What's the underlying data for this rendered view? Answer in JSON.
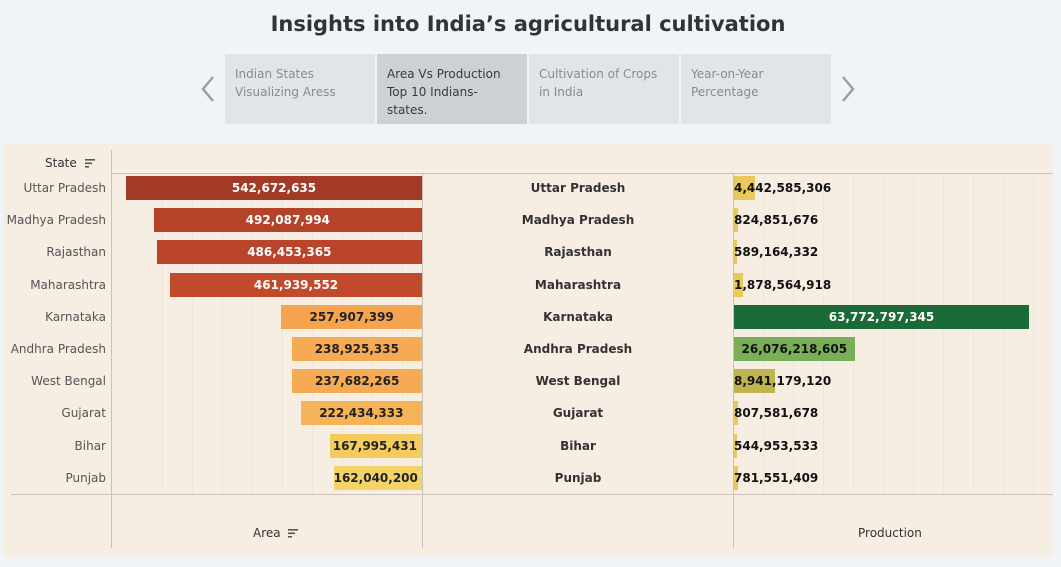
{
  "title": "Insights into India’s agricultural cultivation",
  "tabs": [
    {
      "label": "Indian States Visualizing Aress",
      "active": false
    },
    {
      "label": "Area Vs Production Top 10 Indians-states.",
      "active": true
    },
    {
      "label": "Cultivation of Crops in India",
      "active": false
    },
    {
      "label": "Year-on-Year Percentage",
      "active": false
    }
  ],
  "nav": {
    "prev_icon": "chevron-left-icon",
    "next_icon": "chevron-right-icon"
  },
  "headers": {
    "state": "State",
    "area": "Area",
    "production": "Production"
  },
  "chart_data": {
    "type": "bar",
    "categories": [
      "Uttar Pradesh",
      "Madhya Pradesh",
      "Rajasthan",
      "Maharashtra",
      "Karnataka",
      "Andhra Pradesh",
      "West Bengal",
      "Gujarat",
      "Bihar",
      "Punjab"
    ],
    "series": [
      {
        "name": "Area",
        "values": [
          542672635,
          492087994,
          486453365,
          461939552,
          257907399,
          238925335,
          237682265,
          222434333,
          167995431,
          162040200
        ]
      },
      {
        "name": "Production",
        "values": [
          4442585306,
          824851676,
          589164332,
          1878564918,
          63772797345,
          26076218605,
          8941179120,
          807581678,
          544953533,
          781551409
        ]
      }
    ],
    "area_labels": [
      "542,672,635",
      "492,087,994",
      "486,453,365",
      "461,939,552",
      "257,907,399",
      "238,925,335",
      "237,682,265",
      "222,434,333",
      "167,995,431",
      "162,040,200"
    ],
    "production_labels": [
      "4,442,585,306",
      "824,851,676",
      "589,164,332",
      "1,878,564,918",
      "63,772,797,345",
      "26,076,218,605",
      "8,941,179,120",
      "807,581,678",
      "544,953,533",
      "781,551,409"
    ],
    "area_colors": [
      "#a33a26",
      "#b5432a",
      "#b9442a",
      "#c04a2b",
      "#f4a44e",
      "#f5ab53",
      "#f5ab53",
      "#f6b257",
      "#f4cc5e",
      "#f4d466"
    ],
    "production_colors": [
      "#e8c95a",
      "#e8c95a",
      "#e8c95a",
      "#e8c95a",
      "#1a6b37",
      "#7aae58",
      "#bdb54f",
      "#e8c95a",
      "#e8c95a",
      "#e8c95a"
    ],
    "area_axis": "reversed, max≈545,000,000",
    "production_axis": "max≈64,000,000,000"
  }
}
